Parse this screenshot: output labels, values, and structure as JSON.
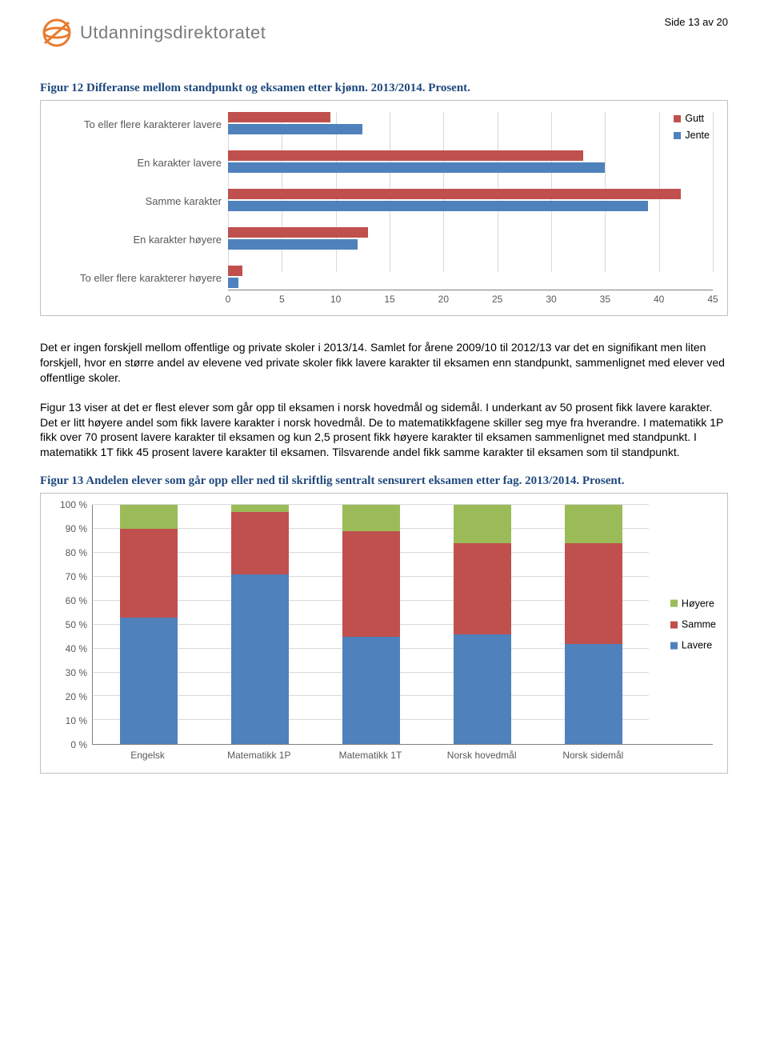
{
  "header": {
    "org_name": "Utdanningsdirektoratet",
    "page_label": "Side 13 av 20"
  },
  "colors": {
    "gutt": "#c0504d",
    "jente": "#4f81bd",
    "hoyere": "#9bbb59",
    "samme": "#c0504d",
    "lavere": "#4f81bd",
    "title_blue": "#1f497d",
    "axis_text": "#595959"
  },
  "figure12": {
    "title": "Figur 12 Differanse mellom standpunkt og eksamen etter kjønn. 2013/2014. Prosent.",
    "x_min": 0,
    "x_max": 45,
    "x_step": 5,
    "categories": [
      {
        "label": "To eller flere karakterer lavere",
        "gutt": 9.5,
        "jente": 12.5
      },
      {
        "label": "En karakter lavere",
        "gutt": 33,
        "jente": 35
      },
      {
        "label": "Samme karakter",
        "gutt": 42,
        "jente": 39
      },
      {
        "label": "En karakter høyere",
        "gutt": 13,
        "jente": 12
      },
      {
        "label": "To eller flere karakterer høyere",
        "gutt": 1.3,
        "jente": 1.0
      }
    ],
    "legend": [
      {
        "label": "Gutt",
        "color_key": "gutt"
      },
      {
        "label": "Jente",
        "color_key": "jente"
      }
    ]
  },
  "para1": "Det er ingen forskjell mellom offentlige og private skoler i 2013/14. Samlet for årene 2009/10 til 2012/13 var det en signifikant men liten forskjell, hvor en større andel av elevene ved private skoler fikk lavere karakter til eksamen enn standpunkt, sammenlignet med elever ved offentlige skoler.",
  "para2": "Figur 13 viser at det er flest elever som går opp til eksamen i norsk hovedmål og sidemål. I underkant av 50 prosent fikk lavere karakter. Det er litt høyere andel som fikk lavere karakter i norsk hovedmål. De to matematikkfagene skiller seg mye fra hverandre. I matematikk 1P fikk over 70 prosent lavere karakter til eksamen og kun 2,5 prosent fikk høyere karakter til eksamen sammenlignet med standpunkt. I matematikk 1T fikk 45 prosent lavere karakter til eksamen. Tilsvarende andel fikk samme karakter til eksamen som til standpunkt.",
  "figure13": {
    "title": "Figur 13 Andelen elever som går opp eller ned til skriftlig sentralt sensurert eksamen etter fag. 2013/2014. Prosent.",
    "y_min": 0,
    "y_max": 100,
    "y_step": 10,
    "y_suffix": " %",
    "categories": [
      {
        "label": "Engelsk",
        "lavere": 53,
        "samme": 37,
        "hoyere": 10
      },
      {
        "label": "Matematikk 1P",
        "lavere": 71,
        "samme": 26,
        "hoyere": 3
      },
      {
        "label": "Matematikk 1T",
        "lavere": 45,
        "samme": 44,
        "hoyere": 11
      },
      {
        "label": "Norsk hovedmål",
        "lavere": 46,
        "samme": 38,
        "hoyere": 16
      },
      {
        "label": "Norsk sidemål",
        "lavere": 42,
        "samme": 42,
        "hoyere": 16
      }
    ],
    "legend": [
      {
        "label": "Høyere",
        "color_key": "hoyere"
      },
      {
        "label": "Samme",
        "color_key": "samme"
      },
      {
        "label": "Lavere",
        "color_key": "lavere"
      }
    ]
  }
}
